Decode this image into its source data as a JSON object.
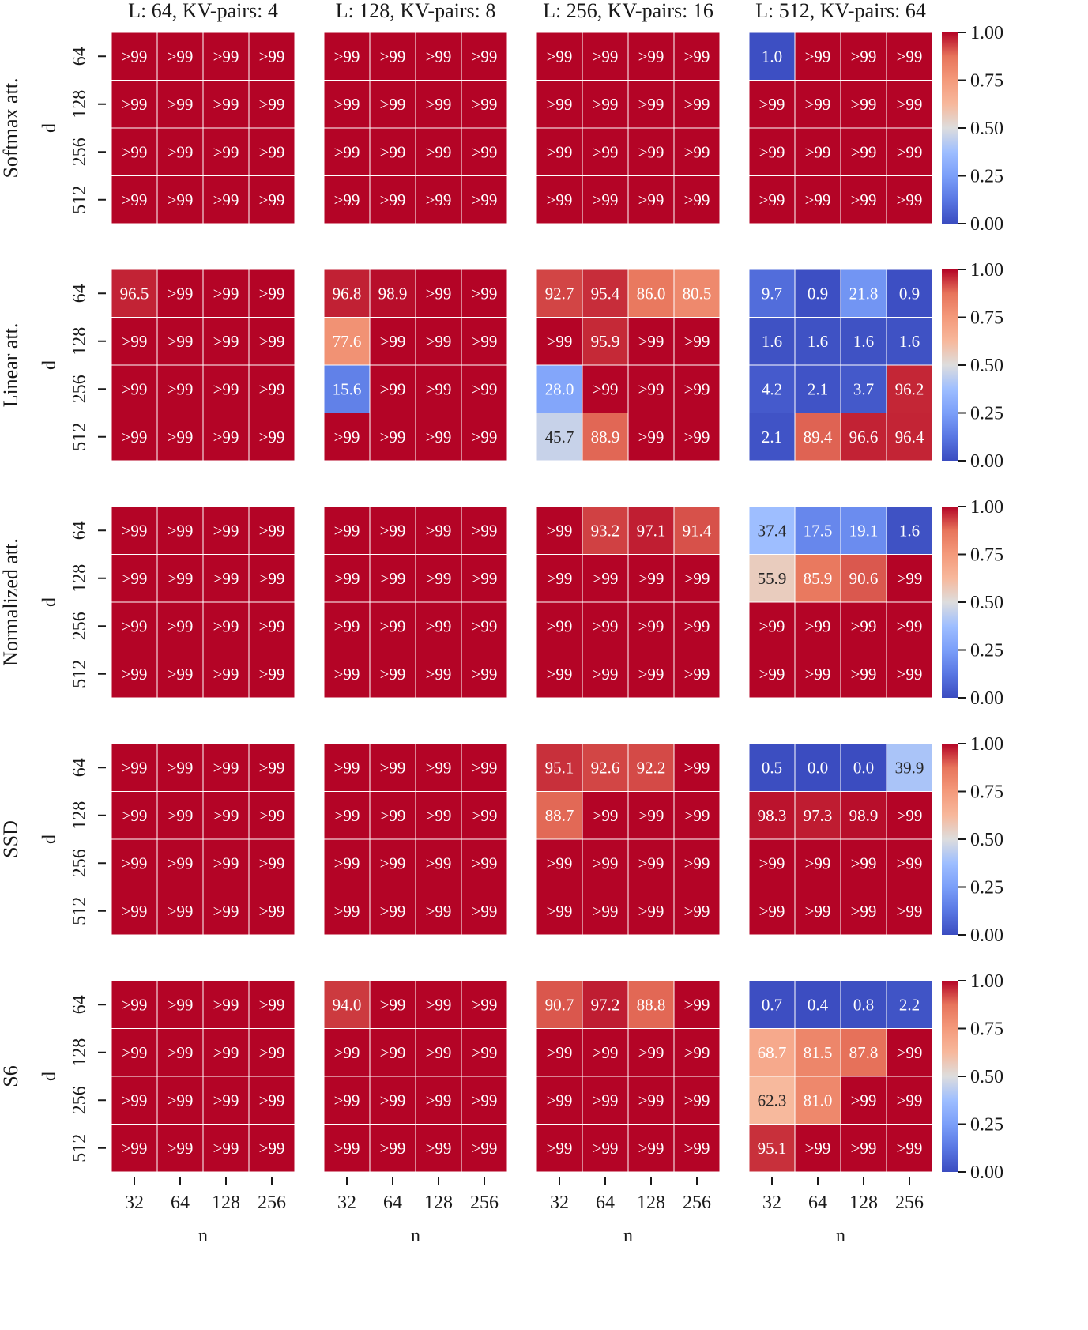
{
  "chart_data": {
    "type": "heatmap",
    "columns": [
      "L: 64, KV-pairs: 4",
      "L: 128, KV-pairs: 8",
      "L: 256, KV-pairs: 16",
      "L: 512, KV-pairs: 64"
    ],
    "rows": [
      "Softmax att.",
      "Linear att.",
      "Normalized att.",
      "SSD",
      "S6"
    ],
    "xlabel": "n",
    "ylabel": "d",
    "x_ticks": [
      "32",
      "64",
      "128",
      "256"
    ],
    "y_ticks": [
      "64",
      "128",
      "256",
      "512"
    ],
    "colorbar": {
      "range": [
        0,
        1
      ],
      "ticks": [
        "0.00",
        "0.25",
        "0.50",
        "0.75",
        "1.00"
      ],
      "colormap": "coolwarm"
    },
    "colors": {
      "low": "#3b4cc0",
      "mid": "#dddddd",
      "high": "#b40426"
    },
    "panels": [
      [
        [
          ">99",
          ">99",
          ">99",
          ">99",
          ">99",
          ">99",
          ">99",
          ">99",
          ">99",
          ">99",
          ">99",
          ">99",
          ">99",
          ">99",
          ">99",
          ">99"
        ],
        [
          ">99",
          ">99",
          ">99",
          ">99",
          ">99",
          ">99",
          ">99",
          ">99",
          ">99",
          ">99",
          ">99",
          ">99",
          ">99",
          ">99",
          ">99",
          ">99"
        ],
        [
          ">99",
          ">99",
          ">99",
          ">99",
          ">99",
          ">99",
          ">99",
          ">99",
          ">99",
          ">99",
          ">99",
          ">99",
          ">99",
          ">99",
          ">99",
          ">99"
        ],
        [
          "1.0",
          ">99",
          ">99",
          ">99",
          ">99",
          ">99",
          ">99",
          ">99",
          ">99",
          ">99",
          ">99",
          ">99",
          ">99",
          ">99",
          ">99",
          ">99"
        ]
      ],
      [
        [
          "96.5",
          ">99",
          ">99",
          ">99",
          ">99",
          ">99",
          ">99",
          ">99",
          ">99",
          ">99",
          ">99",
          ">99",
          ">99",
          ">99",
          ">99",
          ">99"
        ],
        [
          "96.8",
          "98.9",
          ">99",
          ">99",
          "77.6",
          ">99",
          ">99",
          ">99",
          "15.6",
          ">99",
          ">99",
          ">99",
          ">99",
          ">99",
          ">99",
          ">99"
        ],
        [
          "92.7",
          "95.4",
          "86.0",
          "80.5",
          ">99",
          "95.9",
          ">99",
          ">99",
          "28.0",
          ">99",
          ">99",
          ">99",
          "45.7",
          "88.9",
          ">99",
          ">99"
        ],
        [
          "9.7",
          "0.9",
          "21.8",
          "0.9",
          "1.6",
          "1.6",
          "1.6",
          "1.6",
          "4.2",
          "2.1",
          "3.7",
          "96.2",
          "2.1",
          "89.4",
          "96.6",
          "96.4"
        ]
      ],
      [
        [
          ">99",
          ">99",
          ">99",
          ">99",
          ">99",
          ">99",
          ">99",
          ">99",
          ">99",
          ">99",
          ">99",
          ">99",
          ">99",
          ">99",
          ">99",
          ">99"
        ],
        [
          ">99",
          ">99",
          ">99",
          ">99",
          ">99",
          ">99",
          ">99",
          ">99",
          ">99",
          ">99",
          ">99",
          ">99",
          ">99",
          ">99",
          ">99",
          ">99"
        ],
        [
          ">99",
          "93.2",
          "97.1",
          "91.4",
          ">99",
          ">99",
          ">99",
          ">99",
          ">99",
          ">99",
          ">99",
          ">99",
          ">99",
          ">99",
          ">99",
          ">99"
        ],
        [
          "37.4",
          "17.5",
          "19.1",
          "1.6",
          "55.9",
          "85.9",
          "90.6",
          ">99",
          ">99",
          ">99",
          ">99",
          ">99",
          ">99",
          ">99",
          ">99",
          ">99"
        ]
      ],
      [
        [
          ">99",
          ">99",
          ">99",
          ">99",
          ">99",
          ">99",
          ">99",
          ">99",
          ">99",
          ">99",
          ">99",
          ">99",
          ">99",
          ">99",
          ">99",
          ">99"
        ],
        [
          ">99",
          ">99",
          ">99",
          ">99",
          ">99",
          ">99",
          ">99",
          ">99",
          ">99",
          ">99",
          ">99",
          ">99",
          ">99",
          ">99",
          ">99",
          ">99"
        ],
        [
          "95.1",
          "92.6",
          "92.2",
          ">99",
          "88.7",
          ">99",
          ">99",
          ">99",
          ">99",
          ">99",
          ">99",
          ">99",
          ">99",
          ">99",
          ">99",
          ">99"
        ],
        [
          "0.5",
          "0.0",
          "0.0",
          "39.9",
          "98.3",
          "97.3",
          "98.9",
          ">99",
          ">99",
          ">99",
          ">99",
          ">99",
          ">99",
          ">99",
          ">99",
          ">99"
        ]
      ],
      [
        [
          ">99",
          ">99",
          ">99",
          ">99",
          ">99",
          ">99",
          ">99",
          ">99",
          ">99",
          ">99",
          ">99",
          ">99",
          ">99",
          ">99",
          ">99",
          ">99"
        ],
        [
          "94.0",
          ">99",
          ">99",
          ">99",
          ">99",
          ">99",
          ">99",
          ">99",
          ">99",
          ">99",
          ">99",
          ">99",
          ">99",
          ">99",
          ">99",
          ">99"
        ],
        [
          "90.7",
          "97.2",
          "88.8",
          ">99",
          ">99",
          ">99",
          ">99",
          ">99",
          ">99",
          ">99",
          ">99",
          ">99",
          ">99",
          ">99",
          ">99",
          ">99"
        ],
        [
          "0.7",
          "0.4",
          "0.8",
          "2.2",
          "68.7",
          "81.5",
          "87.8",
          ">99",
          "62.3",
          "81.0",
          ">99",
          ">99",
          "95.1",
          ">99",
          ">99",
          ">99"
        ]
      ]
    ]
  }
}
